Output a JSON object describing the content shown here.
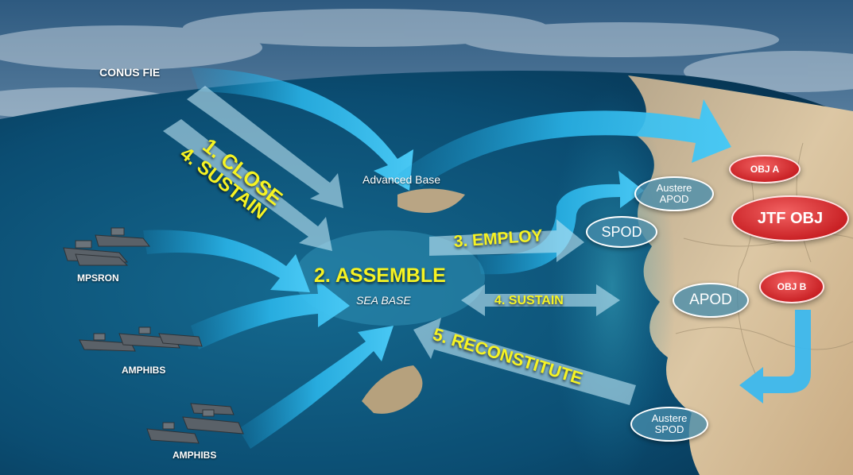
{
  "labels": {
    "conus": "CONUS FIE",
    "advanced_base": "Advanced Base",
    "mpsron": "MPSRON",
    "amphibs_1": "AMPHIBS",
    "amphibs_2": "AMPHIBS",
    "sea_base": "SEA BASE"
  },
  "steps": {
    "close": "1. CLOSE",
    "sustain_left": "4. SUSTAIN",
    "assemble": "2. ASSEMBLE",
    "employ": "3. EMPLOY",
    "sustain_right": "4. SUSTAIN",
    "reconstitute": "5. RECONSTITUTE"
  },
  "ports": {
    "austere_apod_line1": "Austere",
    "austere_apod_line2": "APOD",
    "spod": "SPOD",
    "apod": "APOD",
    "austere_spod_line1": "Austere",
    "austere_spod_line2": "SPOD"
  },
  "objectives": {
    "obj_a": "OBJ A",
    "jtf_obj": "JTF OBJ",
    "obj_b": "OBJ B"
  },
  "colors": {
    "ocean": "#0b4a6e",
    "land": "#d7c2a0",
    "arrow_blue": "#29b6ea",
    "step_text": "#f6f323",
    "objective_red": "#d32f2f"
  }
}
